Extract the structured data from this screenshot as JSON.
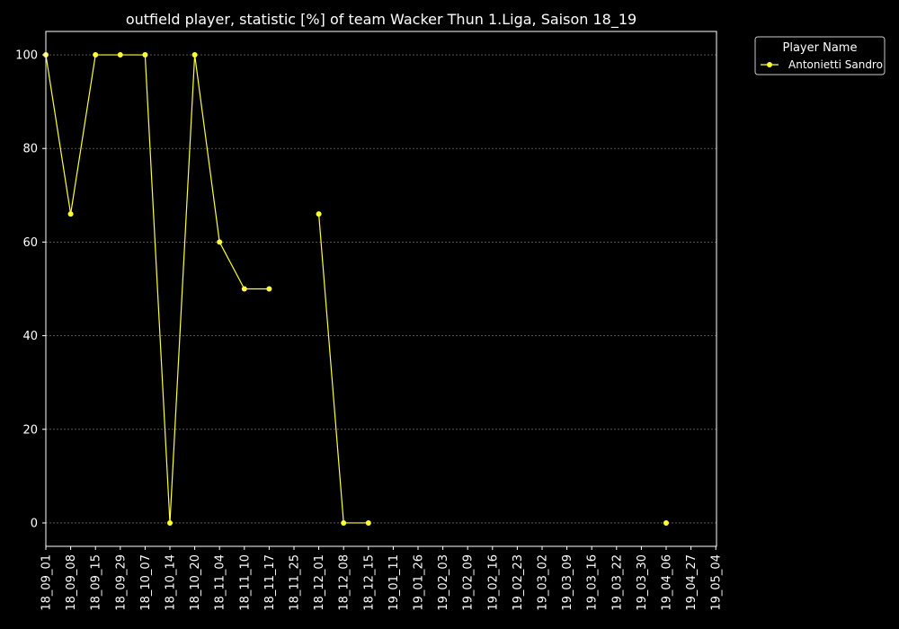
{
  "chart_data": {
    "type": "line",
    "title": "outfield player, statistic [%] of team Wacker Thun 1.Liga, Saison 18_19",
    "xlabel": "",
    "ylabel": "",
    "x": [
      "18_09_01",
      "18_09_08",
      "18_09_15",
      "18_09_29",
      "18_10_07",
      "18_10_14",
      "18_10_20",
      "18_11_04",
      "18_11_10",
      "18_11_17",
      "18_11_25",
      "18_12_01",
      "18_12_08",
      "18_12_15",
      "19_01_11",
      "19_01_26",
      "19_02_03",
      "19_02_09",
      "19_02_16",
      "19_02_23",
      "19_03_02",
      "19_03_09",
      "19_03_16",
      "19_03_22",
      "19_03_30",
      "19_04_06",
      "19_04_27",
      "19_05_04"
    ],
    "ylim": [
      -5,
      105
    ],
    "yticks": [
      0,
      20,
      40,
      60,
      80,
      100
    ],
    "grid": true,
    "legend": {
      "title": "Player Name",
      "placement": "outside-top-right"
    },
    "series": [
      {
        "name": "Antonietti Sandro",
        "color": "#ffff33",
        "values": [
          100,
          66,
          100,
          100,
          100,
          0,
          100,
          60,
          50,
          50,
          null,
          66,
          0,
          0,
          null,
          null,
          null,
          null,
          null,
          null,
          null,
          null,
          null,
          null,
          null,
          0,
          null,
          null
        ]
      }
    ]
  },
  "colors": {
    "background": "#000000",
    "axes": "#ffffff",
    "grid": "#888888"
  }
}
